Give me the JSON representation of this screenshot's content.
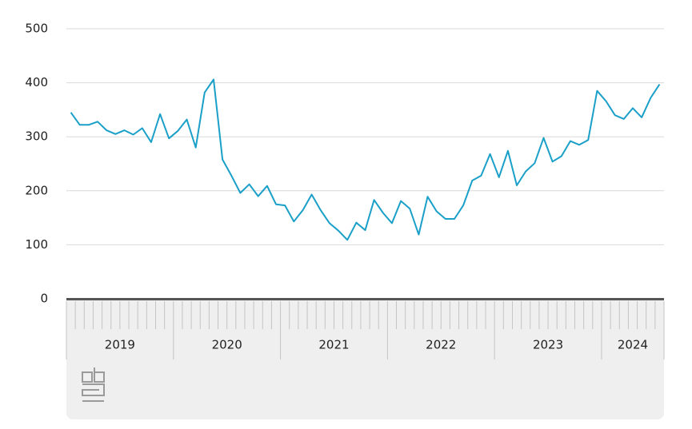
{
  "chart_data": {
    "type": "line",
    "x_labels": [
      "2019",
      "2020",
      "2021",
      "2022",
      "2023",
      "2024"
    ],
    "values": [
      345,
      322,
      322,
      328,
      312,
      305,
      312,
      304,
      316,
      290,
      342,
      297,
      311,
      332,
      280,
      382,
      406,
      258,
      228,
      196,
      212,
      190,
      209,
      175,
      173,
      143,
      164,
      193,
      164,
      140,
      126,
      109,
      141,
      127,
      183,
      159,
      140,
      181,
      167,
      119,
      189,
      162,
      148,
      148,
      173,
      219,
      228,
      268,
      225,
      274,
      210,
      236,
      251,
      298,
      254,
      264,
      292,
      285,
      294,
      385,
      366,
      340,
      333,
      353,
      336,
      372,
      397
    ],
    "color": "#1aa0c8",
    "ylim": [
      0,
      500
    ],
    "yticks": [
      0,
      100,
      200,
      300,
      400,
      500
    ],
    "grid": true
  }
}
